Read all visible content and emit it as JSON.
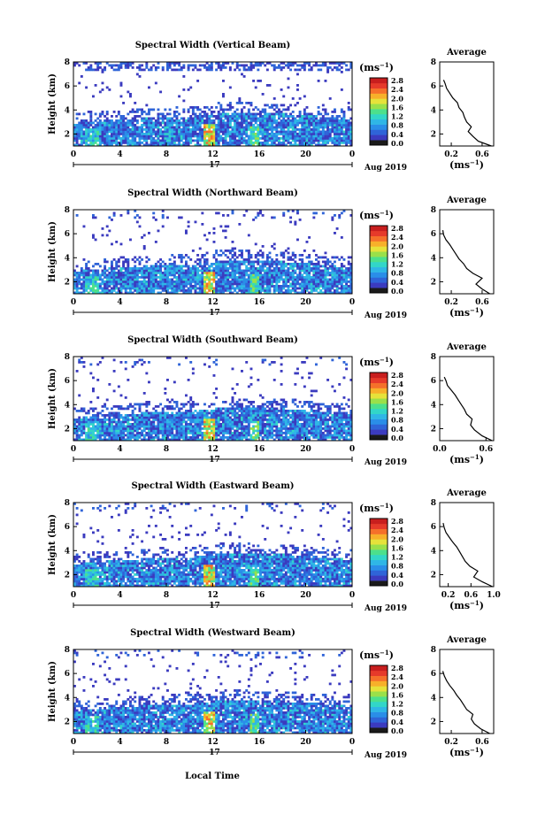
{
  "figure": {
    "xlabel": "Local Time",
    "date_label": "Aug 2019",
    "day_label": "17",
    "colorbar_unit": "(ms",
    "colorbar_unit_exp": "−1",
    "colorbar_unit_close": ")",
    "avg_xlabel": "(ms",
    "avg_xlabel_exp": "−1",
    "avg_xlabel_close": ")",
    "avg_title": "Average",
    "ylabel": "Height (km)"
  },
  "chart_data": [
    {
      "type": "heatmap",
      "title": "Spectral Width (Vertical Beam)",
      "ylabel": "Height (km)",
      "x_ticks": [
        "0",
        "4",
        "8",
        "12",
        "16",
        "20",
        "0"
      ],
      "xlim": [
        0,
        24
      ],
      "y_ticks": [
        "2",
        "4",
        "6",
        "8"
      ],
      "ylim": [
        1,
        8
      ],
      "colorbar_ticks": [
        "0.0",
        "0.4",
        "0.8",
        "1.2",
        "1.6",
        "2.0",
        "2.4",
        "2.8"
      ],
      "colorbar_range": [
        0,
        3.0
      ],
      "colors": [
        "#1a1a1a",
        "#3b3bbf",
        "#2f64d8",
        "#2a8ee8",
        "#2fb6e6",
        "#32d6c8",
        "#4ce08c",
        "#9ae04a",
        "#e6e23a",
        "#f7b02a",
        "#f5702a",
        "#e63a2a",
        "#c81e1e"
      ],
      "avg": {
        "title": "Average",
        "x_ticks": [
          "0.2",
          "0.6"
        ],
        "xlim": [
          0.05,
          0.75
        ],
        "y_ticks": [
          "2",
          "4",
          "6",
          "8"
        ],
        "ylim": [
          1,
          8
        ],
        "profile": [
          [
            0.72,
            1.0
          ],
          [
            0.55,
            1.4
          ],
          [
            0.48,
            1.8
          ],
          [
            0.42,
            2.2
          ],
          [
            0.46,
            2.6
          ],
          [
            0.4,
            3.0
          ],
          [
            0.37,
            3.4
          ],
          [
            0.35,
            3.8
          ],
          [
            0.3,
            4.2
          ],
          [
            0.28,
            4.6
          ],
          [
            0.22,
            5.0
          ],
          [
            0.18,
            5.4
          ],
          [
            0.14,
            5.8
          ],
          [
            0.12,
            6.2
          ],
          [
            0.1,
            6.5
          ]
        ]
      }
    },
    {
      "type": "heatmap",
      "title": "Spectral Width (Northward Beam)",
      "ylabel": "Height (km)",
      "x_ticks": [
        "0",
        "4",
        "8",
        "12",
        "16",
        "20",
        "0"
      ],
      "xlim": [
        0,
        24
      ],
      "y_ticks": [
        "2",
        "4",
        "6",
        "8"
      ],
      "ylim": [
        1,
        8
      ],
      "colorbar_ticks": [
        "0.0",
        "0.4",
        "0.8",
        "1.2",
        "1.6",
        "2.0",
        "2.4",
        "2.8"
      ],
      "colorbar_range": [
        0,
        3.0
      ],
      "colors": [
        "#1a1a1a",
        "#3b3bbf",
        "#2f64d8",
        "#2a8ee8",
        "#2fb6e6",
        "#32d6c8",
        "#4ce08c",
        "#9ae04a",
        "#e6e23a",
        "#f7b02a",
        "#f5702a",
        "#e63a2a",
        "#c81e1e"
      ],
      "avg": {
        "title": "Average",
        "x_ticks": [
          "0.2",
          "0.6"
        ],
        "xlim": [
          0.05,
          0.75
        ],
        "y_ticks": [
          "2",
          "4",
          "6",
          "8"
        ],
        "ylim": [
          1,
          8
        ],
        "profile": [
          [
            0.7,
            1.0
          ],
          [
            0.6,
            1.4
          ],
          [
            0.52,
            1.8
          ],
          [
            0.6,
            2.3
          ],
          [
            0.48,
            2.7
          ],
          [
            0.4,
            3.1
          ],
          [
            0.36,
            3.5
          ],
          [
            0.3,
            3.9
          ],
          [
            0.26,
            4.3
          ],
          [
            0.22,
            4.7
          ],
          [
            0.18,
            5.1
          ],
          [
            0.13,
            5.5
          ],
          [
            0.1,
            5.9
          ],
          [
            0.09,
            6.3
          ]
        ]
      }
    },
    {
      "type": "heatmap",
      "title": "Spectral Width (Southward Beam)",
      "ylabel": "Height (km)",
      "x_ticks": [
        "0",
        "4",
        "8",
        "12",
        "16",
        "20",
        "0"
      ],
      "xlim": [
        0,
        24
      ],
      "y_ticks": [
        "2",
        "4",
        "6",
        "8"
      ],
      "ylim": [
        1,
        8
      ],
      "colorbar_ticks": [
        "0.0",
        "0.4",
        "0.8",
        "1.2",
        "1.6",
        "2.0",
        "2.4",
        "2.8"
      ],
      "colorbar_range": [
        0,
        3.0
      ],
      "colors": [
        "#1a1a1a",
        "#3b3bbf",
        "#2f64d8",
        "#2a8ee8",
        "#2fb6e6",
        "#32d6c8",
        "#4ce08c",
        "#9ae04a",
        "#e6e23a",
        "#f7b02a",
        "#f5702a",
        "#e63a2a",
        "#c81e1e"
      ],
      "avg": {
        "title": "Average",
        "x_ticks": [
          "0.0",
          "0.6"
        ],
        "xlim": [
          0.0,
          0.7
        ],
        "y_ticks": [
          "2",
          "4",
          "6",
          "8"
        ],
        "ylim": [
          1,
          8
        ],
        "profile": [
          [
            0.68,
            1.0
          ],
          [
            0.55,
            1.4
          ],
          [
            0.45,
            1.9
          ],
          [
            0.4,
            2.3
          ],
          [
            0.42,
            2.8
          ],
          [
            0.35,
            3.2
          ],
          [
            0.32,
            3.6
          ],
          [
            0.28,
            4.0
          ],
          [
            0.24,
            4.4
          ],
          [
            0.2,
            4.8
          ],
          [
            0.15,
            5.2
          ],
          [
            0.1,
            5.6
          ],
          [
            0.08,
            6.0
          ],
          [
            0.06,
            6.3
          ]
        ]
      }
    },
    {
      "type": "heatmap",
      "title": "Spectral Width (Eastward Beam)",
      "ylabel": "Height (km)",
      "x_ticks": [
        "0",
        "4",
        "8",
        "12",
        "16",
        "20",
        "0"
      ],
      "xlim": [
        0,
        24
      ],
      "y_ticks": [
        "2",
        "4",
        "6",
        "8"
      ],
      "ylim": [
        1,
        8
      ],
      "colorbar_ticks": [
        "0.0",
        "0.4",
        "0.8",
        "1.2",
        "1.6",
        "2.0",
        "2.4",
        "2.8"
      ],
      "colorbar_range": [
        0,
        3.0
      ],
      "colors": [
        "#1a1a1a",
        "#3b3bbf",
        "#2f64d8",
        "#2a8ee8",
        "#2fb6e6",
        "#32d6c8",
        "#4ce08c",
        "#9ae04a",
        "#e6e23a",
        "#f7b02a",
        "#f5702a",
        "#e63a2a",
        "#c81e1e"
      ],
      "avg": {
        "title": "Average",
        "x_ticks": [
          "0.2",
          "0.6",
          "1.0"
        ],
        "xlim": [
          0.05,
          1.0
        ],
        "y_ticks": [
          "2",
          "4",
          "6",
          "8"
        ],
        "ylim": [
          1,
          8
        ],
        "profile": [
          [
            0.98,
            1.0
          ],
          [
            0.8,
            1.4
          ],
          [
            0.65,
            1.8
          ],
          [
            0.72,
            2.3
          ],
          [
            0.58,
            2.7
          ],
          [
            0.5,
            3.1
          ],
          [
            0.45,
            3.5
          ],
          [
            0.4,
            3.9
          ],
          [
            0.35,
            4.3
          ],
          [
            0.28,
            4.7
          ],
          [
            0.22,
            5.1
          ],
          [
            0.16,
            5.5
          ],
          [
            0.13,
            5.9
          ],
          [
            0.11,
            6.3
          ]
        ]
      }
    },
    {
      "type": "heatmap",
      "title": "Spectral Width (Westward Beam)",
      "ylabel": "Height (km)",
      "x_ticks": [
        "0",
        "4",
        "8",
        "12",
        "16",
        "20",
        "0"
      ],
      "xlim": [
        0,
        24
      ],
      "y_ticks": [
        "2",
        "4",
        "6",
        "8"
      ],
      "ylim": [
        1,
        8
      ],
      "colorbar_ticks": [
        "0.0",
        "0.4",
        "0.8",
        "1.2",
        "1.6",
        "2.0",
        "2.4",
        "2.8"
      ],
      "colorbar_range": [
        0,
        3.0
      ],
      "colors": [
        "#1a1a1a",
        "#3b3bbf",
        "#2f64d8",
        "#2a8ee8",
        "#2fb6e6",
        "#32d6c8",
        "#4ce08c",
        "#9ae04a",
        "#e6e23a",
        "#f7b02a",
        "#f5702a",
        "#e63a2a",
        "#c81e1e"
      ],
      "avg": {
        "title": "Average",
        "x_ticks": [
          "0.2",
          "0.6"
        ],
        "xlim": [
          0.05,
          0.75
        ],
        "y_ticks": [
          "2",
          "4",
          "6",
          "8"
        ],
        "ylim": [
          1,
          8
        ],
        "profile": [
          [
            0.7,
            1.0
          ],
          [
            0.58,
            1.4
          ],
          [
            0.5,
            1.8
          ],
          [
            0.46,
            2.2
          ],
          [
            0.48,
            2.6
          ],
          [
            0.4,
            3.0
          ],
          [
            0.36,
            3.4
          ],
          [
            0.32,
            3.8
          ],
          [
            0.27,
            4.2
          ],
          [
            0.23,
            4.6
          ],
          [
            0.18,
            5.0
          ],
          [
            0.14,
            5.4
          ],
          [
            0.11,
            5.8
          ],
          [
            0.09,
            6.2
          ]
        ]
      }
    }
  ]
}
